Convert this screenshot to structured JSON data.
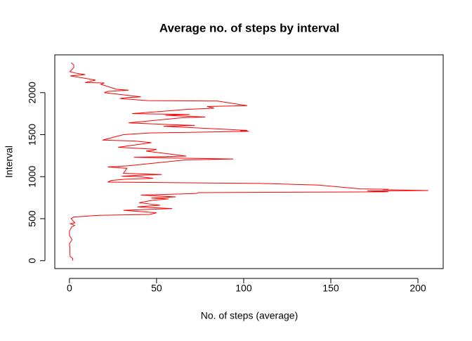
{
  "chart_data": {
    "type": "line",
    "title": "Average no. of steps by interval",
    "x_label": "No. of steps (average)",
    "y_label": "Interval",
    "color": "#ff0000",
    "x": [
      1.7,
      2,
      0.4,
      0.3,
      0.3,
      0,
      1.5,
      0,
      0,
      1.2,
      3,
      0.5,
      3.1,
      1,
      2.5,
      17,
      46,
      50,
      31,
      59,
      39,
      45,
      52,
      40,
      48,
      57,
      47,
      61,
      41,
      73,
      74,
      183,
      171,
      206,
      180,
      183,
      167,
      143,
      109,
      22,
      24,
      32,
      48,
      40,
      30,
      38,
      53,
      31,
      33,
      22,
      34,
      67,
      82,
      94,
      37,
      67,
      44,
      48,
      50,
      28,
      47,
      37,
      19,
      31,
      46,
      103,
      98,
      102,
      54,
      72,
      57,
      34,
      64,
      78,
      55,
      69,
      36,
      67,
      83,
      79,
      102,
      85,
      45,
      29,
      32,
      41,
      20,
      22,
      34,
      27,
      18,
      20,
      9,
      15,
      0.5,
      9,
      3,
      0.3,
      2.5,
      2.5,
      1
    ],
    "values": [
      0,
      25,
      50,
      100,
      150,
      200,
      250,
      300,
      350,
      400,
      420,
      440,
      450,
      500,
      520,
      540,
      550,
      570,
      600,
      620,
      640,
      650,
      660,
      690,
      720,
      735,
      745,
      760,
      780,
      800,
      810,
      820,
      830,
      835,
      845,
      850,
      855,
      900,
      920,
      935,
      955,
      970,
      980,
      1000,
      1005,
      1015,
      1025,
      1040,
      1100,
      1115,
      1130,
      1200,
      1205,
      1210,
      1230,
      1245,
      1305,
      1315,
      1325,
      1350,
      1405,
      1425,
      1435,
      1500,
      1520,
      1540,
      1545,
      1550,
      1600,
      1610,
      1620,
      1640,
      1700,
      1710,
      1730,
      1740,
      1750,
      1800,
      1815,
      1835,
      1845,
      1900,
      1905,
      1930,
      1940,
      1950,
      2000,
      2015,
      2030,
      2040,
      2100,
      2115,
      2120,
      2150,
      2200,
      2215,
      2235,
      2250,
      2300,
      2330,
      2355
    ],
    "xlim": [
      -8.4,
      214.5
    ],
    "ylim": [
      -94,
      2450
    ],
    "xticks": [
      0,
      50,
      100,
      150,
      200
    ],
    "yticks": [
      0,
      500,
      1000,
      1500,
      2000
    ]
  }
}
